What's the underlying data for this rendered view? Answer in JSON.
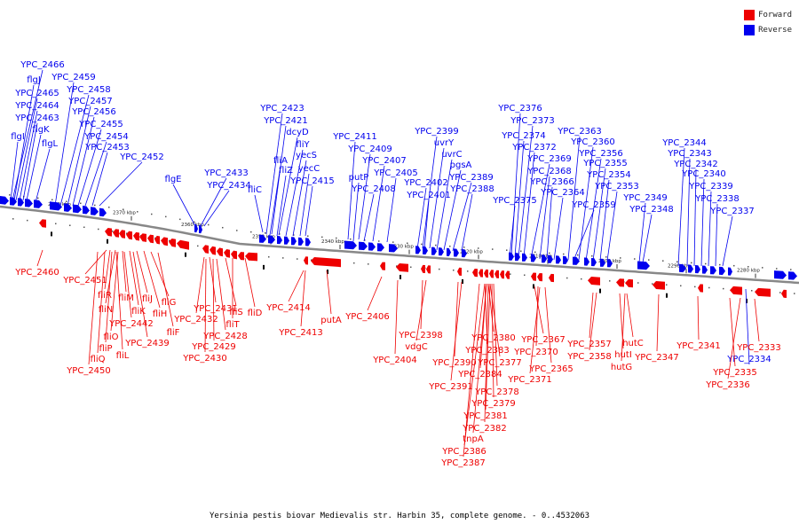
{
  "caption": "Yersinia pestis biovar Medievalis str. Harbin 35, complete genome. - 0..4532063",
  "legend": [
    {
      "label": "Forward",
      "color": "#ee0000"
    },
    {
      "label": "Reverse",
      "color": "#0000ee"
    }
  ],
  "colors": {
    "forward": "#ee0000",
    "reverse": "#0000ee",
    "backbone": "#888888"
  },
  "scale_labels": [
    "2380 kbp",
    "2370 kbp",
    "2360 kbp",
    "2350 kbp",
    "2340 kbp",
    "2330 kbp",
    "2320 kbp",
    "2310 kbp",
    "2300 kbp",
    "2290 kbp",
    "2280 kbp"
  ],
  "reverse_labels": [
    "YPC_2466",
    "flgJ",
    "YPC_2465",
    "YPC_2464",
    "YPC_2463",
    "flgI",
    "YPC_2459",
    "YPC_2458",
    "YPC_2457",
    "YPC_2456",
    "flgK",
    "YPC_2455",
    "YPC_2454",
    "flgL",
    "YPC_2453",
    "YPC_2452",
    "flgE",
    "YPC_2433",
    "YPC_2434",
    "fliC",
    "YPC_2423",
    "YPC_2421",
    "dcyD",
    "fliY",
    "fliA",
    "yecS",
    "fliZ",
    "yecC",
    "YPC_2415",
    "YPC_2411",
    "YPC_2409",
    "putP",
    "YPC_2408",
    "YPC_2407",
    "YPC_2405",
    "YPC_2399",
    "uvrY",
    "YPC_2402",
    "YPC_2401",
    "uvrC",
    "pgsA",
    "YPC_2389",
    "YPC_2388",
    "YPC_2376",
    "YPC_2373",
    "YPC_2374",
    "YPC_2372",
    "YPC_2375",
    "YPC_2369",
    "YPC_2368",
    "YPC_2366",
    "YPC_2364",
    "YPC_2363",
    "YPC_2360",
    "YPC_2356",
    "YPC_2355",
    "YPC_2354",
    "YPC_2353",
    "YPC_2359",
    "YPC_2349",
    "YPC_2348",
    "YPC_2344",
    "YPC_2343",
    "YPC_2342",
    "YPC_2340",
    "YPC_2339",
    "YPC_2338",
    "YPC_2337",
    "YPC_2334"
  ],
  "forward_labels": [
    "YPC_2460",
    "YPC_2451",
    "fliR",
    "fliN",
    "fliM",
    "fliK",
    "fliJ",
    "fliH",
    "fliG",
    "fliO",
    "fliP",
    "YPC_2442",
    "YPC_2439",
    "fliF",
    "fliQ",
    "fliL",
    "YPC_2450",
    "YPC_2431",
    "YPC_2432",
    "fliS",
    "fliT",
    "fliD",
    "YPC_2428",
    "YPC_2429",
    "YPC_2430",
    "YPC_2414",
    "YPC_2413",
    "putA",
    "YPC_2406",
    "YPC_2398",
    "vdgC",
    "YPC_2404",
    "YPC_2390",
    "YPC_2391",
    "YPC_2380",
    "YPC_2383",
    "YPC_2377",
    "YPC_2384",
    "YPC_2378",
    "YPC_2379",
    "YPC_2381",
    "YPC_2382",
    "tnpA",
    "YPC_2386",
    "YPC_2387",
    "YPC_2367",
    "YPC_2370",
    "YPC_2365",
    "YPC_2371",
    "YPC_2357",
    "YPC_2358",
    "hutC",
    "hutI",
    "hutG",
    "YPC_2347",
    "YPC_2341",
    "YPC_2333",
    "YPC_2335",
    "YPC_2336"
  ]
}
